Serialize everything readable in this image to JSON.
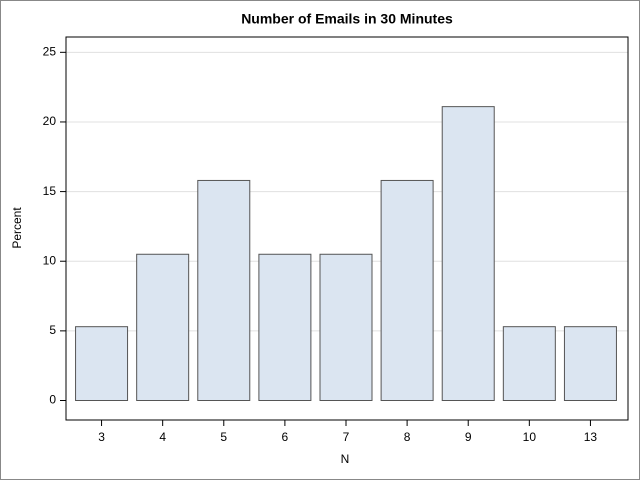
{
  "chart_data": {
    "type": "bar",
    "title": "Number of Emails in 30 Minutes",
    "x_label": "N",
    "y_label": "Percent",
    "categories": [
      "3",
      "4",
      "5",
      "6",
      "7",
      "8",
      "9",
      "10",
      "13"
    ],
    "values": [
      5.3,
      10.5,
      15.8,
      10.5,
      10.5,
      15.8,
      21.1,
      5.3,
      5.3
    ],
    "color": "#dbe5f1",
    "ylim": [
      -1.4,
      26.1
    ],
    "yticks": [
      0,
      5,
      10,
      15,
      20,
      25
    ],
    "grid": true
  }
}
